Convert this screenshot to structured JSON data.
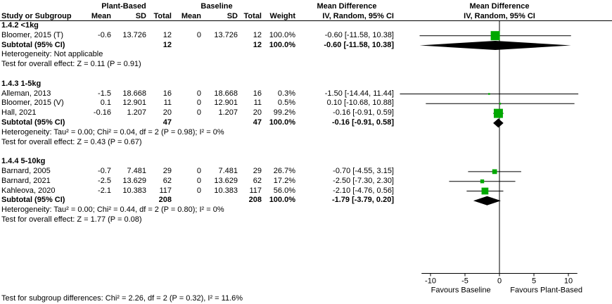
{
  "header": {
    "group1": "Plant-Based",
    "group2": "Baseline",
    "md_title": "Mean Difference",
    "plot_title": "Mean Difference",
    "plot_sub": "IV, Random, 95% CI",
    "columns": [
      "Study or Subgroup",
      "Mean",
      "SD",
      "Total",
      "Mean",
      "SD",
      "Total",
      "Weight",
      "IV, Random, 95% CI"
    ]
  },
  "footer": {
    "subgroup_diff": "Test for subgroup differences: Chi² = 2.26, df = 2 (P = 0.32), I² = 11.6%"
  },
  "colors": {
    "square": "#00a800",
    "diamond": "#000000",
    "line": "#000000",
    "text": "#000000"
  },
  "chart_data": {
    "type": "scatter",
    "subtype": "forest-plot",
    "effect_measure": "Mean Difference, IV, Random, 95% CI",
    "axis": {
      "ticks": [
        -10,
        -5,
        0,
        5,
        10
      ],
      "xlim": [
        -12,
        12
      ],
      "left_label": "Favours Baseline",
      "right_label": "Favours Plant-Based"
    },
    "groups": [
      {
        "title": "1.4.2 <1kg",
        "studies": [
          {
            "label": "Bloomer, 2015 (T)",
            "mean1": "-0.6",
            "sd1": "13.726",
            "total1": "12",
            "mean2": "0",
            "sd2": "13.726",
            "total2": "12",
            "weight": "100.0%",
            "ci": "-0.60 [-11.58, 10.38]",
            "est": -0.6,
            "lo": -11.58,
            "hi": 10.38,
            "w": 100.0
          }
        ],
        "subtotal": {
          "label": "Subtotal (95% CI)",
          "total1": "12",
          "total2": "12",
          "weight": "100.0%",
          "ci": "-0.60 [-11.58, 10.38]",
          "est": -0.6,
          "lo": -11.58,
          "hi": 10.38
        },
        "heterogeneity": "Heterogeneity: Not applicable",
        "overall_effect": "Test for overall effect: Z = 0.11 (P = 0.91)"
      },
      {
        "title": "1.4.3 1-5kg",
        "studies": [
          {
            "label": "Alleman, 2013",
            "mean1": "-1.5",
            "sd1": "18.668",
            "total1": "16",
            "mean2": "0",
            "sd2": "18.668",
            "total2": "16",
            "weight": "0.3%",
            "ci": "-1.50 [-14.44, 11.44]",
            "est": -1.5,
            "lo": -14.44,
            "hi": 11.44,
            "w": 0.3
          },
          {
            "label": "Bloomer, 2015 (V)",
            "mean1": "0.1",
            "sd1": "12.901",
            "total1": "11",
            "mean2": "0",
            "sd2": "12.901",
            "total2": "11",
            "weight": "0.5%",
            "ci": "0.10 [-10.68, 10.88]",
            "est": 0.1,
            "lo": -10.68,
            "hi": 10.88,
            "w": 0.5
          },
          {
            "label": "Hall, 2021",
            "mean1": "-0.16",
            "sd1": "1.207",
            "total1": "20",
            "mean2": "0",
            "sd2": "1.207",
            "total2": "20",
            "weight": "99.2%",
            "ci": "-0.16 [-0.91, 0.59]",
            "est": -0.16,
            "lo": -0.91,
            "hi": 0.59,
            "w": 99.2
          }
        ],
        "subtotal": {
          "label": "Subtotal (95% CI)",
          "total1": "47",
          "total2": "47",
          "weight": "100.0%",
          "ci": "-0.16 [-0.91, 0.58]",
          "est": -0.16,
          "lo": -0.91,
          "hi": 0.58
        },
        "heterogeneity": "Heterogeneity: Tau² = 0.00; Chi² = 0.04, df = 2 (P = 0.98); I² = 0%",
        "overall_effect": "Test for overall effect: Z = 0.43 (P = 0.67)"
      },
      {
        "title": "1.4.4 5-10kg",
        "studies": [
          {
            "label": "Barnard, 2005",
            "mean1": "-0.7",
            "sd1": "7.481",
            "total1": "29",
            "mean2": "0",
            "sd2": "7.481",
            "total2": "29",
            "weight": "26.7%",
            "ci": "-0.70 [-4.55, 3.15]",
            "est": -0.7,
            "lo": -4.55,
            "hi": 3.15,
            "w": 26.7
          },
          {
            "label": "Barnard, 2021",
            "mean1": "-2.5",
            "sd1": "13.629",
            "total1": "62",
            "mean2": "0",
            "sd2": "13.629",
            "total2": "62",
            "weight": "17.2%",
            "ci": "-2.50 [-7.30, 2.30]",
            "est": -2.5,
            "lo": -7.3,
            "hi": 2.3,
            "w": 17.2
          },
          {
            "label": "Kahleova, 2020",
            "mean1": "-2.1",
            "sd1": "10.383",
            "total1": "117",
            "mean2": "0",
            "sd2": "10.383",
            "total2": "117",
            "weight": "56.0%",
            "ci": "-2.10 [-4.76, 0.56]",
            "est": -2.1,
            "lo": -4.76,
            "hi": 0.56,
            "w": 56.0
          }
        ],
        "subtotal": {
          "label": "Subtotal (95% CI)",
          "total1": "208",
          "total2": "208",
          "weight": "100.0%",
          "ci": "-1.79 [-3.79, 0.20]",
          "est": -1.79,
          "lo": -3.79,
          "hi": 0.2
        },
        "heterogeneity": "Heterogeneity: Tau² = 0.00; Chi² = 0.44, df = 2 (P = 0.80); I² = 0%",
        "overall_effect": "Test for overall effect: Z = 1.77 (P = 0.08)"
      }
    ]
  }
}
